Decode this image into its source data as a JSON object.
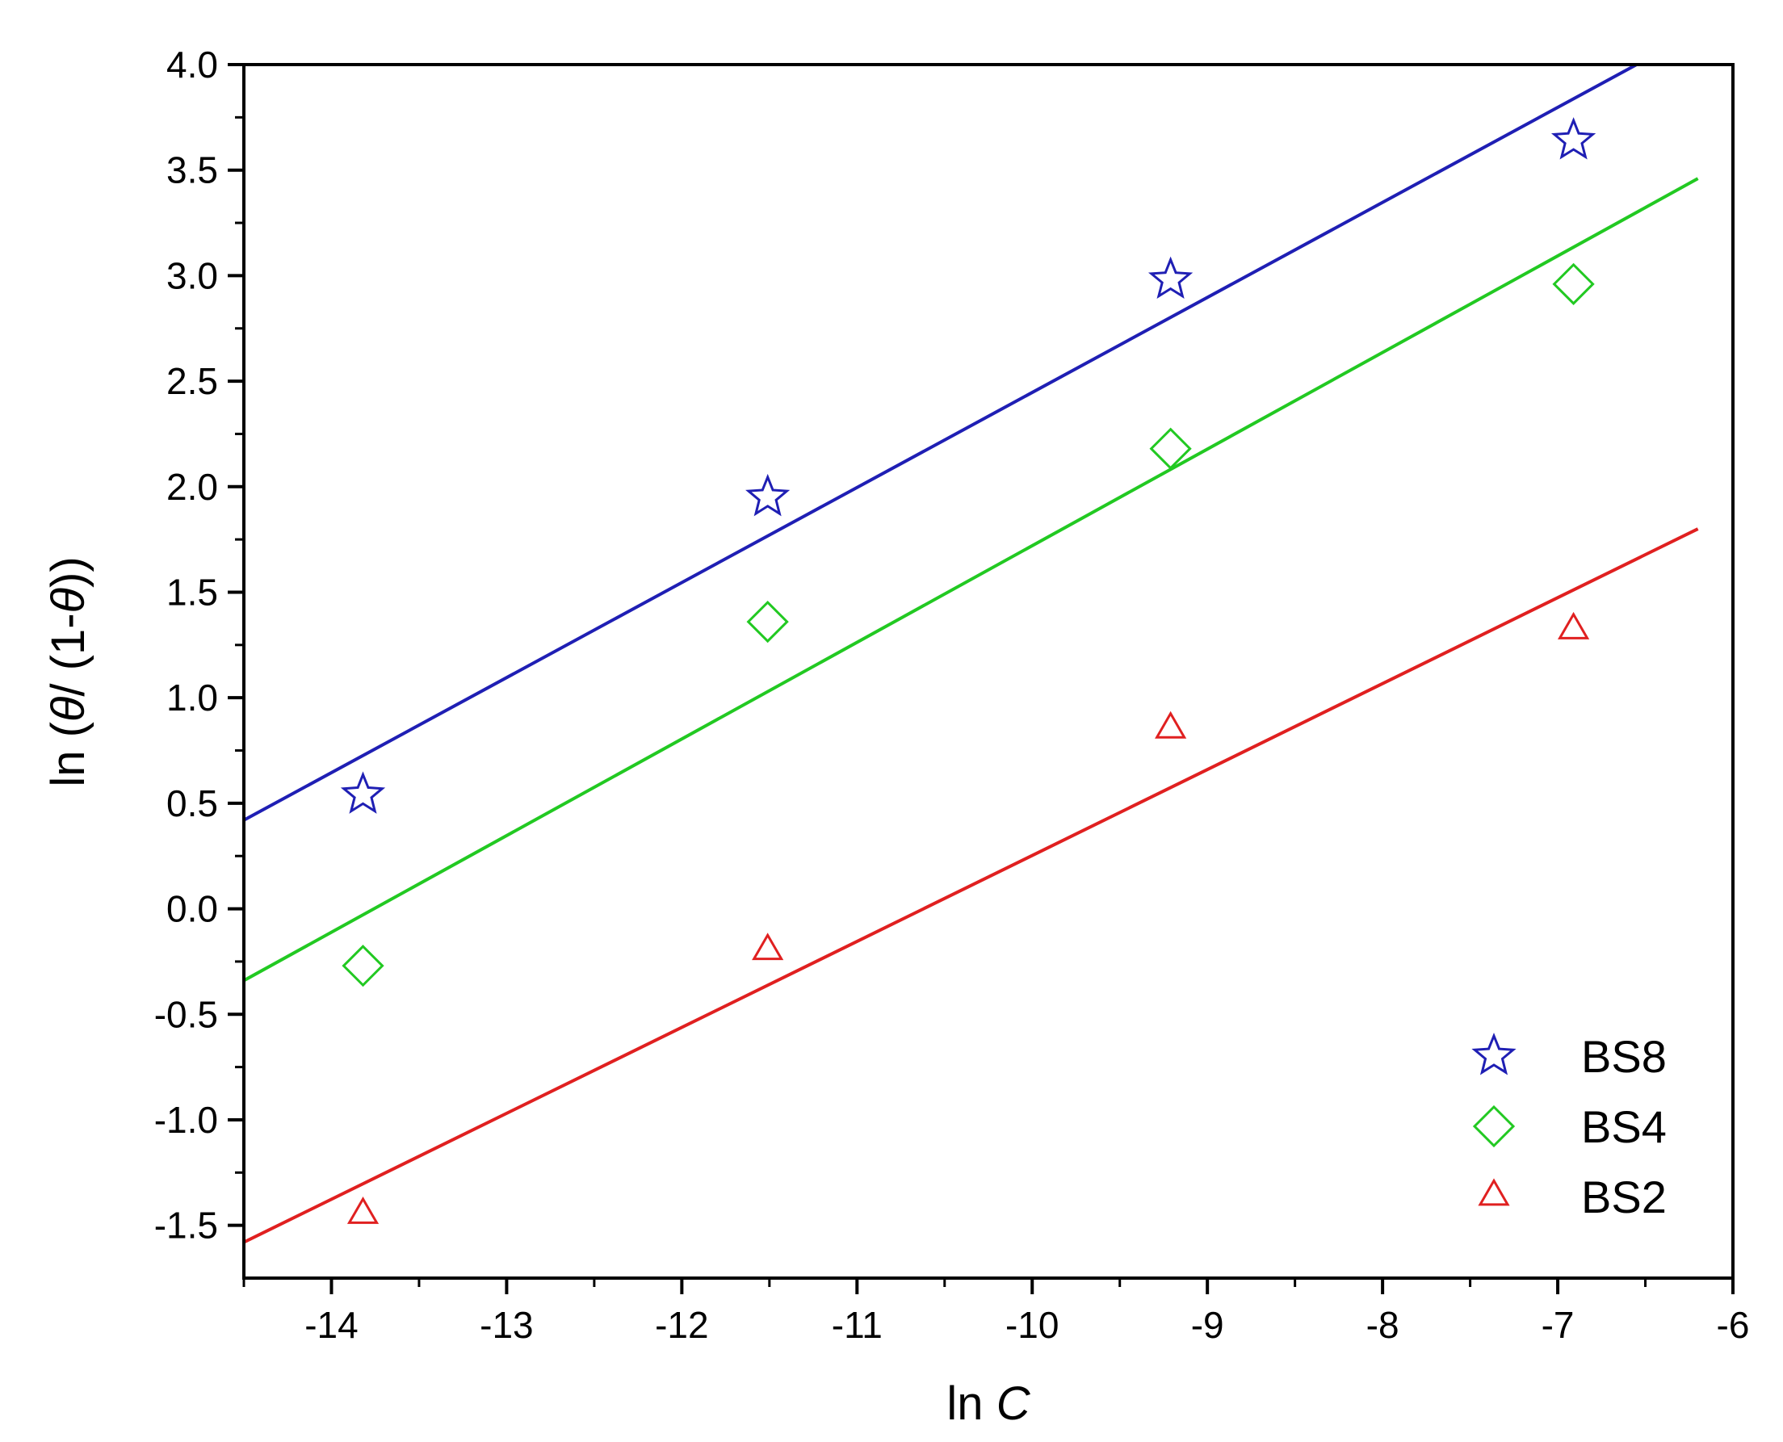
{
  "chart_data": {
    "type": "scatter",
    "title": "",
    "xlabel": {
      "prefix": "ln ",
      "var": "C"
    },
    "ylabel": {
      "p1": "ln (",
      "t1": "θ",
      "p2": "/ (1-",
      "t2": "θ",
      "p3": "))"
    },
    "xlim": [
      -14.5,
      -6
    ],
    "ylim": [
      -1.75,
      4.0
    ],
    "x_ticks": [
      -14,
      -13,
      -12,
      -11,
      -10,
      -9,
      -8,
      -7,
      -6
    ],
    "x_tick_labels": [
      "-14",
      "-13",
      "-12",
      "-11",
      "-10",
      "-9",
      "-8",
      "-7",
      "-6"
    ],
    "y_ticks": [
      -1.5,
      -1.0,
      -0.5,
      0.0,
      0.5,
      1.0,
      1.5,
      2.0,
      2.5,
      3.0,
      3.5,
      4.0
    ],
    "y_tick_labels": [
      "-1.5",
      "-1.0",
      "-0.5",
      "0.0",
      "0.5",
      "1.0",
      "1.5",
      "2.0",
      "2.5",
      "3.0",
      "3.5",
      "4.0"
    ],
    "grid": false,
    "legend_position": "bottom-right",
    "series": [
      {
        "name": "BS8",
        "marker": "star",
        "color": "#1f1fb4",
        "points": [
          {
            "x": -13.82,
            "y": 0.54
          },
          {
            "x": -11.51,
            "y": 1.95
          },
          {
            "x": -9.21,
            "y": 2.98
          },
          {
            "x": -6.91,
            "y": 3.64
          }
        ],
        "fit": {
          "x": [
            -14.5,
            -6.55
          ],
          "y": [
            0.42,
            4.0
          ]
        }
      },
      {
        "name": "BS4",
        "marker": "diamond",
        "color": "#22c922",
        "points": [
          {
            "x": -13.82,
            "y": -0.27
          },
          {
            "x": -11.51,
            "y": 1.36
          },
          {
            "x": -9.21,
            "y": 2.18
          },
          {
            "x": -6.91,
            "y": 2.96
          }
        ],
        "fit": {
          "x": [
            -14.5,
            -6.2
          ],
          "y": [
            -0.34,
            3.46
          ]
        }
      },
      {
        "name": "BS2",
        "marker": "triangle",
        "color": "#e02020",
        "points": [
          {
            "x": -13.82,
            "y": -1.45
          },
          {
            "x": -11.51,
            "y": -0.2
          },
          {
            "x": -9.21,
            "y": 0.85
          },
          {
            "x": -6.91,
            "y": 1.32
          }
        ],
        "fit": {
          "x": [
            -14.5,
            -6.2
          ],
          "y": [
            -1.58,
            1.8
          ]
        }
      }
    ]
  }
}
